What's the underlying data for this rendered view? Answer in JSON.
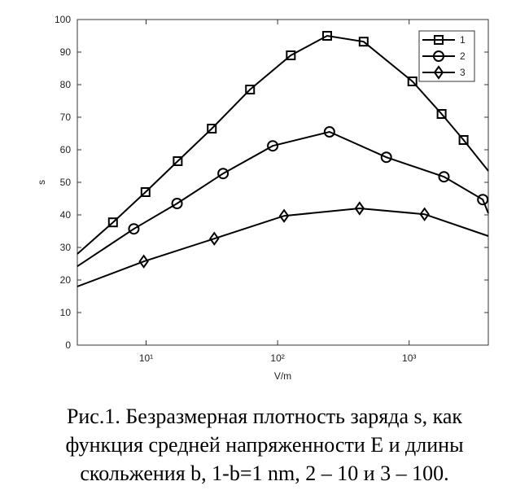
{
  "chart_data": {
    "type": "line",
    "xlabel": "V/m",
    "ylabel": "s",
    "xscale": "log",
    "xlim": [
      3,
      4000
    ],
    "ylim": [
      0,
      100
    ],
    "xticks": [
      {
        "value": 10,
        "label": "10¹"
      },
      {
        "value": 100,
        "label": "10²"
      },
      {
        "value": 1000,
        "label": "10³"
      }
    ],
    "yticks": [
      0,
      10,
      20,
      30,
      40,
      50,
      60,
      70,
      80,
      90,
      100
    ],
    "legend": "upper right",
    "series": [
      {
        "name": "1",
        "color": "#000000",
        "marker": "square",
        "x": [
          3,
          5.6,
          9.9,
          17.4,
          31.6,
          61.7,
          126,
          238,
          451,
          1059,
          1766,
          2594,
          4000
        ],
        "values": [
          28,
          37.7,
          47,
          56.5,
          66.5,
          78.5,
          89,
          95,
          93.2,
          81,
          71,
          63,
          53.5
        ]
      },
      {
        "name": "2",
        "color": "#000000",
        "marker": "circle",
        "x": [
          3,
          8.07,
          17.2,
          38.5,
          91.8,
          248,
          671,
          1840,
          3630,
          4000
        ],
        "values": [
          24.2,
          35.7,
          43.5,
          52.7,
          61.2,
          65.5,
          57.7,
          51.7,
          44.7,
          40.5
        ]
      },
      {
        "name": "3",
        "color": "#000000",
        "marker": "diamond",
        "x": [
          3,
          9.6,
          33,
          112,
          420,
          1310,
          4000
        ],
        "values": [
          18,
          25.7,
          32.7,
          39.7,
          42,
          40.2,
          33.5
        ]
      }
    ]
  },
  "caption": [
    "Рис.1. Безразмерная плотность заряда s, как",
    "функция средней напряженности E и длины",
    "скольжения b,  1-b=1 nm, 2 – 10 и 3 – 100."
  ]
}
